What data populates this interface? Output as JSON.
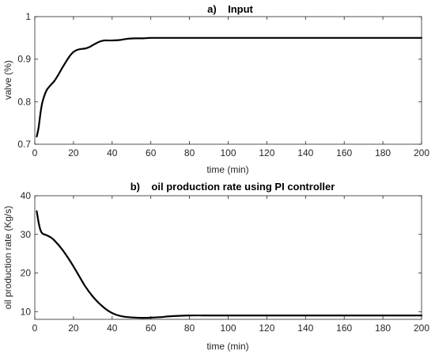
{
  "chart_data": [
    {
      "type": "line",
      "title": "a)    Input",
      "xlabel": "time (min)",
      "ylabel": "valve (%)",
      "xlim": [
        0,
        200
      ],
      "ylim": [
        0.7,
        1.0
      ],
      "xticks": [
        0,
        20,
        40,
        60,
        80,
        100,
        120,
        140,
        160,
        180,
        200
      ],
      "xtick_labels": [
        "0",
        "20",
        "40",
        "60",
        "80",
        "100",
        "120",
        "140",
        "160",
        "180",
        "200"
      ],
      "yticks": [
        0.7,
        0.8,
        0.9,
        1.0
      ],
      "ytick_labels": [
        "0.7",
        "0.8",
        "0.9",
        "1"
      ],
      "grid": false,
      "series": [
        {
          "x": [
            1,
            2,
            3,
            4,
            6,
            8,
            10,
            12,
            14,
            16,
            18,
            20,
            22,
            24,
            26,
            28,
            30,
            32,
            34,
            36,
            38,
            40,
            44,
            48,
            52,
            56,
            60,
            70,
            80,
            100,
            120,
            140,
            160,
            180,
            200
          ],
          "y": [
            0.718,
            0.74,
            0.775,
            0.8,
            0.826,
            0.838,
            0.848,
            0.862,
            0.878,
            0.893,
            0.907,
            0.917,
            0.922,
            0.924,
            0.925,
            0.928,
            0.933,
            0.938,
            0.942,
            0.944,
            0.944,
            0.944,
            0.945,
            0.948,
            0.949,
            0.949,
            0.95,
            0.95,
            0.95,
            0.95,
            0.95,
            0.95,
            0.95,
            0.95,
            0.95
          ]
        }
      ]
    },
    {
      "type": "line",
      "title": "b)    oil production rate using PI controller",
      "xlabel": "time (min)",
      "ylabel": "oil production rate (Kg/s)",
      "xlim": [
        0,
        200
      ],
      "ylim": [
        8,
        40
      ],
      "xticks": [
        0,
        20,
        40,
        60,
        80,
        100,
        120,
        140,
        160,
        180,
        200
      ],
      "xtick_labels": [
        "0",
        "20",
        "40",
        "60",
        "80",
        "100",
        "120",
        "140",
        "160",
        "180",
        "200"
      ],
      "yticks": [
        10,
        20,
        30,
        40
      ],
      "ytick_labels": [
        "10",
        "20",
        "30",
        "40"
      ],
      "grid": false,
      "series": [
        {
          "x": [
            1,
            2,
            3,
            4,
            6,
            8,
            10,
            14,
            18,
            22,
            26,
            30,
            34,
            38,
            42,
            46,
            50,
            54,
            58,
            62,
            66,
            70,
            80,
            90,
            100,
            120,
            140,
            160,
            180,
            200
          ],
          "y": [
            36,
            33,
            31,
            30.2,
            29.8,
            29.3,
            28.5,
            26.2,
            23.3,
            20,
            16.6,
            13.9,
            11.8,
            10.2,
            9.2,
            8.7,
            8.5,
            8.4,
            8.4,
            8.5,
            8.6,
            8.8,
            9.0,
            9.0,
            9.0,
            9.0,
            9.0,
            9.0,
            9.0,
            9.0
          ]
        }
      ]
    }
  ]
}
